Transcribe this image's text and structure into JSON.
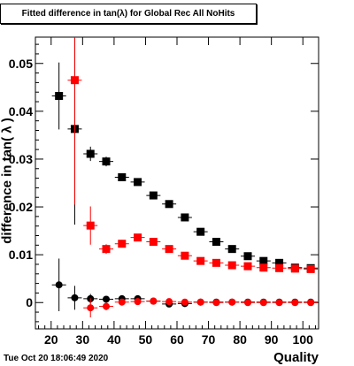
{
  "title": "Fitted difference in tan(λ) for Global Rec All NoHits",
  "timestamp": "Tue Oct 20 18:06:49 2020",
  "chart_data": {
    "type": "scatter",
    "title": "Fitted difference in tan(λ) for Global Rec All NoHits",
    "xlabel": "Quality",
    "ylabel": "difference in tan( λ )",
    "xlim": [
      15,
      105
    ],
    "ylim": [
      -0.0055,
      0.0555
    ],
    "xticks": [
      20,
      30,
      40,
      50,
      60,
      70,
      80,
      90,
      100
    ],
    "xtick_labels": [
      "20",
      "30",
      "40",
      "50",
      "60",
      "70",
      "80",
      "90",
      "100"
    ],
    "yticks": [
      0,
      0.01,
      0.02,
      0.03,
      0.04,
      0.05
    ],
    "ytick_labels": [
      "0",
      "0.01",
      "0.02",
      "0.03",
      "0.04",
      "0.05"
    ],
    "grid": false,
    "series": [
      {
        "color": "#000000",
        "marker": "square",
        "x": [
          22.5,
          27.5,
          32.5,
          37.5,
          42.5,
          47.5,
          52.5,
          57.5,
          62.5,
          67.5,
          72.5,
          77.5,
          82.5,
          87.5,
          92.5,
          97.5,
          102.5
        ],
        "y": [
          0.0432,
          0.0363,
          0.0311,
          0.0295,
          0.0262,
          0.0252,
          0.0224,
          0.0206,
          0.0178,
          0.0148,
          0.0127,
          0.0112,
          0.0097,
          0.0087,
          0.0083,
          0.0073,
          0.0072
        ],
        "err": [
          0.007,
          0.02,
          0.0015,
          0.001,
          0.0007,
          0.0006,
          0.0005,
          0.0005,
          0.0004,
          0.0004,
          0.0004,
          0.0004,
          0.0004,
          0.0004,
          0.0004,
          0.0004,
          0.0004
        ]
      },
      {
        "color": "#ff0000",
        "marker": "square",
        "x": [
          27.5,
          32.5,
          37.5,
          42.5,
          47.5,
          52.5,
          57.5,
          62.5,
          67.5,
          72.5,
          77.5,
          82.5,
          87.5,
          92.5,
          97.5,
          102.5
        ],
        "y": [
          0.0465,
          0.0161,
          0.0112,
          0.0123,
          0.0136,
          0.0127,
          0.0112,
          0.0098,
          0.0087,
          0.0083,
          0.0078,
          0.0076,
          0.0073,
          0.0072,
          0.0071,
          0.007
        ],
        "err": [
          0.026,
          0.004,
          0.001,
          0.0008,
          0.0006,
          0.0005,
          0.0005,
          0.0004,
          0.0004,
          0.0004,
          0.0004,
          0.0004,
          0.0004,
          0.0004,
          0.0004,
          0.0004
        ]
      },
      {
        "color": "#000000",
        "marker": "circle",
        "x": [
          22.5,
          27.5,
          32.5,
          37.5,
          42.5,
          47.5,
          52.5,
          57.5,
          62.5,
          67.5,
          72.5,
          77.5,
          82.5,
          87.5,
          92.5,
          97.5,
          102.5
        ],
        "y": [
          0.0037,
          0.001,
          0.0008,
          0.0007,
          0.0008,
          0.0008,
          0.0003,
          -0.0003,
          -0.0002,
          0.0001,
          0.0001,
          0.0001,
          0.0001,
          0.0001,
          0.0001,
          0.0001,
          0.0001
        ],
        "err": [
          0.0055,
          0.0025,
          0.001,
          0.0006,
          0.0005,
          0.0004,
          0.0004,
          0.0004,
          0.0004,
          0.0003,
          0.0003,
          0.0003,
          0.0003,
          0.0003,
          0.0003,
          0.0003,
          0.0003
        ]
      },
      {
        "color": "#ff0000",
        "marker": "circle",
        "x": [
          32.5,
          37.5,
          42.5,
          47.5,
          52.5,
          57.5,
          62.5,
          67.5,
          72.5,
          77.5,
          82.5,
          87.5,
          92.5,
          97.5,
          102.5
        ],
        "y": [
          -0.0011,
          -0.0008,
          0.0001,
          0.0002,
          0.0003,
          0.0002,
          0.0001,
          0.0001,
          0.0,
          0.0001,
          0.0,
          0.0,
          0.0,
          0.0,
          0.0
        ],
        "err": [
          0.002,
          0.0008,
          0.0006,
          0.0005,
          0.0004,
          0.0004,
          0.0003,
          0.0003,
          0.0003,
          0.0003,
          0.0003,
          0.0003,
          0.0003,
          0.0003,
          0.0003
        ]
      }
    ]
  }
}
